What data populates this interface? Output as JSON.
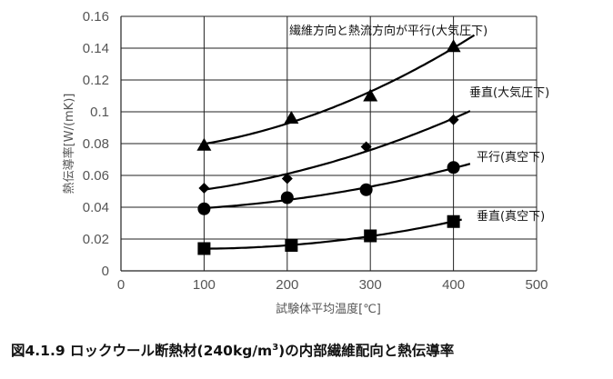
{
  "chart_data": {
    "type": "scatter",
    "title": "",
    "xlabel": "試験体平均温度[℃]",
    "ylabel": "熱伝導率[W/(mK)]",
    "xlim": [
      0,
      500
    ],
    "ylim": [
      0,
      0.16
    ],
    "grid": true,
    "x_ticks": [
      "0",
      "100",
      "200",
      "300",
      "400",
      "500"
    ],
    "y_ticks": [
      "0",
      "0.02",
      "0.04",
      "0.06",
      "0.08",
      "0.1",
      "0.12",
      "0.14",
      "0.16"
    ],
    "series": [
      {
        "name": "繊維方向と熱流方向が平行(大気圧下)",
        "marker": "triangle",
        "x": [
          100,
          205,
          300,
          400
        ],
        "y": [
          0.079,
          0.096,
          0.11,
          0.141
        ]
      },
      {
        "name": "垂直(大気圧下)",
        "marker": "diamond",
        "x": [
          100,
          200,
          295,
          400
        ],
        "y": [
          0.052,
          0.058,
          0.078,
          0.095
        ]
      },
      {
        "name": "平行(真空下)",
        "marker": "circle",
        "x": [
          100,
          200,
          295,
          400
        ],
        "y": [
          0.039,
          0.046,
          0.051,
          0.065
        ]
      },
      {
        "name": "垂直(真空下)",
        "marker": "square",
        "x": [
          100,
          205,
          300,
          400
        ],
        "y": [
          0.014,
          0.016,
          0.022,
          0.031
        ]
      }
    ]
  },
  "caption": {
    "main": "図4.1.9  ロックウール断熱材(240kg/m",
    "sup": "3",
    "rest": ")の内部繊維配向と熱伝導率"
  }
}
